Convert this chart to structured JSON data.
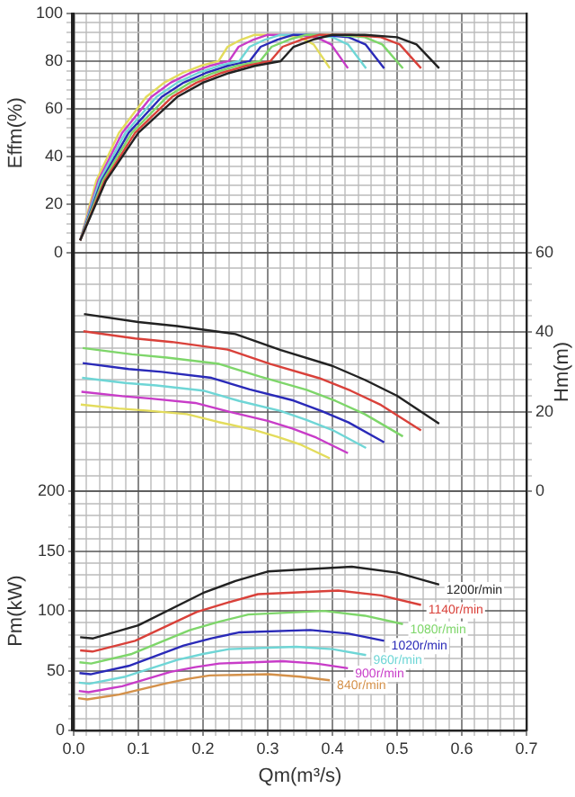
{
  "chart_data": {
    "type": "line",
    "xlabel": "Qm(m³/s)",
    "ylabel": "Pm(kW)",
    "y2label": "Hm(m)",
    "y3label": "Effm(%)",
    "grid": true,
    "xlim": [
      0,
      0.7
    ],
    "xticks": [
      {
        "value": 0,
        "label": "0.0"
      },
      {
        "value": 0.02,
        "label": null
      },
      {
        "value": 0.04,
        "label": null
      },
      {
        "value": 0.06,
        "label": null
      },
      {
        "value": 0.08,
        "label": null
      },
      0.1,
      {
        "value": 0.12,
        "label": null
      },
      {
        "value": 0.14,
        "label": null
      },
      {
        "value": 0.16,
        "label": null
      },
      {
        "value": 0.18,
        "label": null
      },
      0.2,
      {
        "value": 0.22,
        "label": null
      },
      {
        "value": 0.24,
        "label": null
      },
      {
        "value": 0.26,
        "label": null
      },
      {
        "value": 0.28,
        "label": null
      },
      0.3,
      {
        "value": 0.32,
        "label": null
      },
      {
        "value": 0.34,
        "label": null
      },
      {
        "value": 0.36,
        "label": null
      },
      {
        "value": 0.38,
        "label": null
      },
      0.4,
      {
        "value": 0.42,
        "label": null
      },
      {
        "value": 0.44,
        "label": null
      },
      {
        "value": 0.46,
        "label": null
      },
      {
        "value": 0.48,
        "label": null
      },
      0.5,
      {
        "value": 0.52,
        "label": null
      },
      {
        "value": 0.54,
        "label": null
      },
      {
        "value": 0.56,
        "label": null
      },
      {
        "value": 0.58,
        "label": null
      },
      0.6,
      {
        "value": 0.62,
        "label": null
      },
      {
        "value": 0.64,
        "label": null
      },
      {
        "value": 0.66,
        "label": null
      },
      {
        "value": 0.68,
        "label": null
      },
      0.7
    ],
    "ylim": [
      0,
      600
    ],
    "yticks": [
      0,
      {
        "value": 10,
        "label": null
      },
      {
        "value": 20,
        "label": null
      },
      {
        "value": 30,
        "label": null
      },
      {
        "value": 40,
        "label": null
      },
      50,
      {
        "value": 60,
        "label": null
      },
      {
        "value": 70,
        "label": null
      },
      {
        "value": 80,
        "label": null
      },
      {
        "value": 90,
        "label": null
      },
      100,
      {
        "value": 110,
        "label": null
      },
      {
        "value": 120,
        "label": null
      },
      {
        "value": 130,
        "label": null
      },
      {
        "value": 140,
        "label": null
      },
      150,
      {
        "value": 160,
        "label": null
      },
      {
        "value": 170,
        "label": null
      },
      {
        "value": 180,
        "label": null
      },
      {
        "value": 190,
        "label": null
      },
      200
    ],
    "y2lim": [
      -60,
      120
    ],
    "y2ticks": [
      0,
      {
        "value": 4,
        "label": null
      },
      {
        "value": 8,
        "label": null
      },
      {
        "value": 12,
        "label": null
      },
      {
        "value": 16,
        "label": null
      },
      20,
      {
        "value": 24,
        "label": null
      },
      {
        "value": 28,
        "label": null
      },
      {
        "value": 32,
        "label": null
      },
      {
        "value": 36,
        "label": null
      },
      40,
      {
        "value": 44,
        "label": null
      },
      {
        "value": 48,
        "label": null
      },
      {
        "value": 52,
        "label": null
      },
      {
        "value": 56,
        "label": null
      },
      60
    ],
    "y3lim": [
      -200,
      100
    ],
    "y3ticks": [
      0,
      {
        "value": 4,
        "label": null
      },
      {
        "value": 8,
        "label": null
      },
      {
        "value": 12,
        "label": null
      },
      {
        "value": 16,
        "label": null
      },
      20,
      {
        "value": 24,
        "label": null
      },
      {
        "value": 28,
        "label": null
      },
      {
        "value": 32,
        "label": null
      },
      {
        "value": 36,
        "label": null
      },
      40,
      {
        "value": 44,
        "label": null
      },
      {
        "value": 48,
        "label": null
      },
      {
        "value": 52,
        "label": null
      },
      {
        "value": 56,
        "label": null
      },
      60,
      {
        "value": 64,
        "label": null
      },
      {
        "value": 68,
        "label": null
      },
      {
        "value": 72,
        "label": null
      },
      {
        "value": 76,
        "label": null
      },
      80,
      {
        "value": 84,
        "label": null
      },
      {
        "value": 88,
        "label": null
      },
      {
        "value": 92,
        "label": null
      },
      {
        "value": 96,
        "label": null
      },
      100
    ],
    "series": [
      {
        "color": "#222222",
        "axis": "y3",
        "x": [
          0.01,
          0.05,
          0.1,
          0.16,
          0.2,
          0.24,
          0.28,
          0.32,
          0.34,
          0.37,
          0.4,
          0.45,
          0.5,
          0.53,
          0.565
        ],
        "values": [
          5,
          30,
          50,
          65,
          71,
          75,
          78,
          80,
          86,
          89,
          91,
          91,
          90,
          87,
          77
        ]
      },
      {
        "color": "#d9413a",
        "axis": "y3",
        "x": [
          0.01,
          0.048,
          0.095,
          0.152,
          0.19,
          0.228,
          0.266,
          0.304,
          0.323,
          0.352,
          0.38,
          0.428,
          0.475,
          0.504,
          0.537
        ],
        "values": [
          5,
          30,
          50,
          65,
          71,
          75,
          78,
          80,
          86,
          89,
          91,
          91,
          90,
          87,
          77
        ]
      },
      {
        "color": "#7ed66a",
        "axis": "y3",
        "x": [
          0.01,
          0.045,
          0.09,
          0.144,
          0.18,
          0.216,
          0.252,
          0.288,
          0.306,
          0.333,
          0.36,
          0.405,
          0.45,
          0.477,
          0.509
        ],
        "values": [
          5,
          30,
          50,
          65,
          71,
          75,
          78,
          80,
          86,
          89,
          91,
          91,
          90,
          87,
          77
        ]
      },
      {
        "color": "#2a2ab8",
        "axis": "y3",
        "x": [
          0.01,
          0.043,
          0.085,
          0.136,
          0.17,
          0.204,
          0.238,
          0.272,
          0.289,
          0.315,
          0.34,
          0.383,
          0.425,
          0.451,
          0.48
        ],
        "values": [
          5,
          30,
          50,
          65,
          71,
          75,
          78,
          80,
          86,
          89,
          91,
          91,
          90,
          87,
          77
        ]
      },
      {
        "color": "#6fd6d6",
        "axis": "y3",
        "x": [
          0.01,
          0.04,
          0.08,
          0.128,
          0.16,
          0.192,
          0.224,
          0.256,
          0.272,
          0.296,
          0.32,
          0.36,
          0.4,
          0.424,
          0.452
        ],
        "values": [
          5,
          30,
          50,
          65,
          71,
          75,
          78,
          80,
          86,
          89,
          91,
          91,
          90,
          87,
          77
        ]
      },
      {
        "color": "#c83cc8",
        "axis": "y3",
        "x": [
          0.01,
          0.038,
          0.075,
          0.12,
          0.15,
          0.18,
          0.21,
          0.24,
          0.255,
          0.278,
          0.3,
          0.338,
          0.375,
          0.398,
          0.424
        ],
        "values": [
          5,
          30,
          50,
          65,
          71,
          75,
          78,
          80,
          86,
          89,
          91,
          91,
          90,
          87,
          77
        ]
      },
      {
        "color": "#e3dc5c",
        "axis": "y3",
        "x": [
          0.01,
          0.035,
          0.07,
          0.112,
          0.14,
          0.168,
          0.196,
          0.224,
          0.238,
          0.259,
          0.28,
          0.315,
          0.35,
          0.371,
          0.396
        ],
        "values": [
          5,
          30,
          50,
          65,
          71,
          75,
          78,
          80,
          86,
          89,
          91,
          91,
          90,
          87,
          77
        ]
      },
      {
        "color": "#222222",
        "axis": "y2",
        "x": [
          0.016,
          0.1,
          0.16,
          0.25,
          0.32,
          0.4,
          0.45,
          0.5,
          0.565
        ],
        "values": [
          44.5,
          42.5,
          41.5,
          39.5,
          35.5,
          31.5,
          28,
          24,
          17
        ]
      },
      {
        "color": "#d9413a",
        "axis": "y2",
        "x": [
          0.015,
          0.095,
          0.152,
          0.238,
          0.304,
          0.38,
          0.428,
          0.475,
          0.537
        ],
        "values": [
          40.2,
          38.4,
          37.5,
          35.6,
          32.0,
          28.4,
          25.3,
          21.7,
          15.3
        ]
      },
      {
        "color": "#7ed66a",
        "axis": "y2",
        "x": [
          0.014,
          0.09,
          0.144,
          0.225,
          0.288,
          0.36,
          0.405,
          0.45,
          0.509
        ],
        "values": [
          36.0,
          34.4,
          33.6,
          32.0,
          28.8,
          25.5,
          22.7,
          19.4,
          13.8
        ]
      },
      {
        "color": "#2a2ab8",
        "axis": "y2",
        "x": [
          0.014,
          0.085,
          0.136,
          0.213,
          0.272,
          0.34,
          0.383,
          0.425,
          0.48
        ],
        "values": [
          32.2,
          30.7,
          30.0,
          28.5,
          25.6,
          22.8,
          20.2,
          17.3,
          12.3
        ]
      },
      {
        "color": "#6fd6d6",
        "axis": "y2",
        "x": [
          0.013,
          0.08,
          0.128,
          0.2,
          0.256,
          0.32,
          0.36,
          0.4,
          0.452
        ],
        "values": [
          28.5,
          27.2,
          26.6,
          25.3,
          22.7,
          20.2,
          17.9,
          15.4,
          10.9
        ]
      },
      {
        "color": "#c83cc8",
        "axis": "y2",
        "x": [
          0.012,
          0.075,
          0.12,
          0.188,
          0.24,
          0.3,
          0.338,
          0.375,
          0.424
        ],
        "values": [
          25.0,
          23.9,
          23.3,
          22.2,
          20.0,
          17.7,
          15.8,
          13.5,
          9.6
        ]
      },
      {
        "color": "#e3dc5c",
        "axis": "y2",
        "x": [
          0.011,
          0.07,
          0.112,
          0.175,
          0.224,
          0.28,
          0.315,
          0.35,
          0.396
        ],
        "values": [
          21.8,
          20.8,
          20.3,
          19.4,
          17.4,
          15.4,
          13.7,
          11.8,
          8.3
        ]
      },
      {
        "name": "1200r/min",
        "color": "#222222",
        "x": [
          0.01,
          0.03,
          0.1,
          0.2,
          0.25,
          0.3,
          0.43,
          0.5,
          0.565
        ],
        "values": [
          78,
          77,
          88,
          115,
          125,
          133,
          137,
          132,
          122
        ]
      },
      {
        "name": "1140r/min",
        "color": "#d9413a",
        "x": [
          0.01,
          0.029,
          0.095,
          0.19,
          0.238,
          0.285,
          0.409,
          0.475,
          0.537
        ],
        "values": [
          67,
          66,
          75,
          99,
          107,
          114,
          117,
          113,
          105
        ]
      },
      {
        "name": "1080r/min",
        "color": "#7ed66a",
        "x": [
          0.009,
          0.027,
          0.09,
          0.18,
          0.225,
          0.27,
          0.387,
          0.45,
          0.509
        ],
        "values": [
          57,
          56,
          64,
          84,
          91,
          97,
          100,
          96,
          89
        ]
      },
      {
        "name": "1020r/min",
        "color": "#2a2ab8",
        "x": [
          0.009,
          0.026,
          0.085,
          0.17,
          0.213,
          0.255,
          0.366,
          0.425,
          0.48
        ],
        "values": [
          48,
          47,
          54,
          71,
          77,
          82,
          84,
          81,
          75
        ]
      },
      {
        "name": "960r/min",
        "color": "#6fd6d6",
        "x": [
          0.008,
          0.024,
          0.08,
          0.16,
          0.2,
          0.24,
          0.344,
          0.4,
          0.452
        ],
        "values": [
          40,
          39,
          45,
          59,
          64,
          68,
          70,
          68,
          63
        ]
      },
      {
        "name": "900r/min",
        "color": "#c83cc8",
        "x": [
          0.008,
          0.023,
          0.075,
          0.15,
          0.188,
          0.225,
          0.323,
          0.375,
          0.424
        ],
        "values": [
          33,
          32,
          37,
          49,
          53,
          56,
          58,
          56,
          52
        ]
      },
      {
        "name": "840r/min",
        "color": "#d4914a",
        "x": [
          0.007,
          0.021,
          0.07,
          0.14,
          0.175,
          0.21,
          0.301,
          0.35,
          0.396
        ],
        "values": [
          27,
          26,
          30,
          39,
          43,
          46,
          47,
          45,
          42
        ]
      }
    ]
  }
}
